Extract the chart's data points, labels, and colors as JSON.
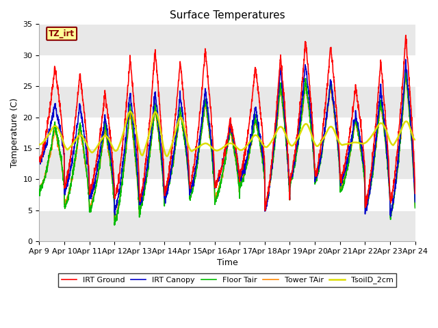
{
  "title": "Surface Temperatures",
  "xlabel": "Time",
  "ylabel": "Temperature (C)",
  "ylim": [
    0,
    35
  ],
  "x_tick_labels": [
    "Apr 9",
    "Apr 10",
    "Apr 11",
    "Apr 12",
    "Apr 13",
    "Apr 14",
    "Apr 15",
    "Apr 16",
    "Apr 17",
    "Apr 18",
    "Apr 19",
    "Apr 20",
    "Apr 21",
    "Apr 22",
    "Apr 23",
    "Apr 24"
  ],
  "annotation_text": "TZ_irt",
  "annotation_bg": "#FFFF99",
  "annotation_border": "#8B0000",
  "legend": [
    "IRT Ground",
    "IRT Canopy",
    "Floor Tair",
    "Tower TAir",
    "TsoilD_2cm"
  ],
  "line_colors": [
    "#FF0000",
    "#0000CC",
    "#00BB00",
    "#FF8800",
    "#DDDD00"
  ],
  "line_widths": [
    1.2,
    1.2,
    1.2,
    1.2,
    1.8
  ],
  "n_days": 15,
  "pts_per_day": 144
}
